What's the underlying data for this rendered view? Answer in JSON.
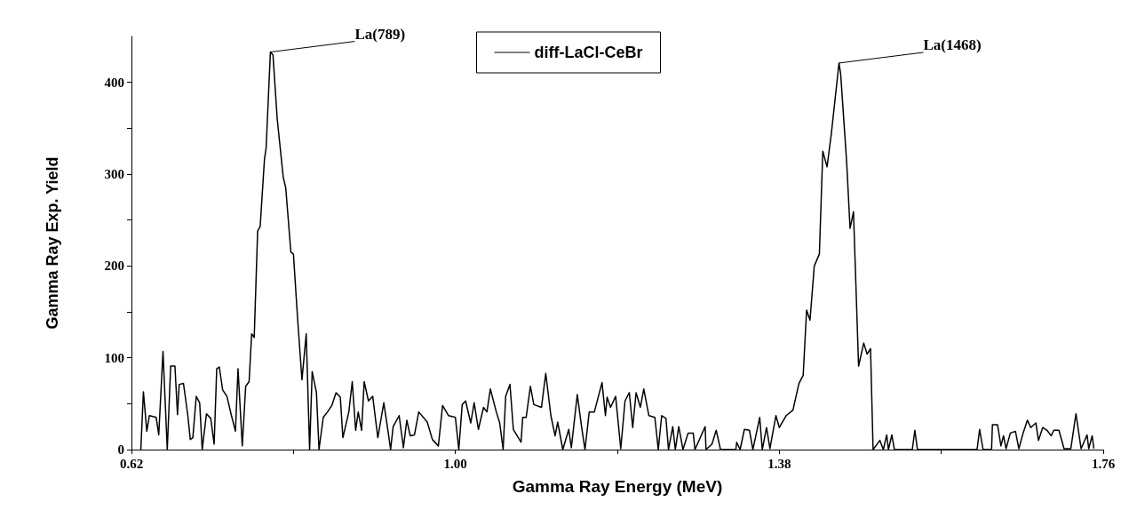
{
  "chart_data": {
    "type": "line",
    "xlabel": "Gamma Ray Energy (MeV)",
    "ylabel": "Gamma Ray Exp. Yield",
    "xlim": [
      0.62,
      1.76
    ],
    "ylim": [
      0,
      450
    ],
    "xticks": [
      0.62,
      {
        "value": 0.81,
        "label": null
      },
      {
        "value": 1,
        "label": "1.00"
      },
      {
        "value": 1.19,
        "label": null
      },
      1.38,
      {
        "value": 1.57,
        "label": null
      },
      1.76
    ],
    "yticks": [
      0,
      {
        "value": 50,
        "label": null
      },
      100,
      {
        "value": 150,
        "label": null
      },
      200,
      {
        "value": 250,
        "label": null
      },
      300,
      {
        "value": 350,
        "label": null
      },
      400
    ],
    "grid": false,
    "legend": "top",
    "marker": "none",
    "line_style": "solid",
    "annotations": [
      {
        "text": "La(789)",
        "x": 0.783,
        "y": 433
      },
      {
        "text": "La(1468)",
        "x": 1.45,
        "y": 421
      }
    ],
    "series": [
      {
        "name": "diff-LaCl-CeBr",
        "color": "#000000",
        "x": [
          0.631,
          0.634,
          0.638,
          0.641,
          0.649,
          0.652,
          0.657,
          0.662,
          0.666,
          0.671,
          0.674,
          0.676,
          0.681,
          0.686,
          0.689,
          0.692,
          0.696,
          0.7,
          0.703,
          0.708,
          0.713,
          0.717,
          0.72,
          0.723,
          0.727,
          0.732,
          0.737,
          0.742,
          0.745,
          0.75,
          0.754,
          0.758,
          0.761,
          0.764,
          0.768,
          0.771,
          0.776,
          0.778,
          0.783,
          0.786,
          0.791,
          0.798,
          0.801,
          0.807,
          0.81,
          0.815,
          0.82,
          0.825,
          0.829,
          0.832,
          0.837,
          0.84,
          0.845,
          0.85,
          0.855,
          0.86,
          0.865,
          0.868,
          0.875,
          0.879,
          0.883,
          0.886,
          0.89,
          0.893,
          0.898,
          0.903,
          0.909,
          0.916,
          0.921,
          0.924,
          0.927,
          0.934,
          0.939,
          0.943,
          0.947,
          0.952,
          0.957,
          0.967,
          0.973,
          0.98,
          0.985,
          0.992,
          1.0,
          1.004,
          1.008,
          1.012,
          1.018,
          1.022,
          1.027,
          1.033,
          1.037,
          1.041,
          1.048,
          1.052,
          1.056,
          1.059,
          1.064,
          1.068,
          1.077,
          1.079,
          1.083,
          1.088,
          1.092,
          1.101,
          1.106,
          1.112,
          1.117,
          1.12,
          1.126,
          1.133,
          1.136,
          1.143,
          1.148,
          1.152,
          1.157,
          1.163,
          1.172,
          1.176,
          1.178,
          1.182,
          1.188,
          1.194,
          1.199,
          1.204,
          1.208,
          1.212,
          1.217,
          1.221,
          1.227,
          1.234,
          1.238,
          1.242,
          1.247,
          1.25,
          1.255,
          1.258,
          1.262,
          1.267,
          1.273,
          1.279,
          1.281,
          1.293,
          1.294,
          1.301,
          1.306,
          1.311,
          1.329,
          1.33,
          1.334,
          1.339,
          1.345,
          1.349,
          1.357,
          1.36,
          1.365,
          1.369,
          1.376,
          1.38,
          1.388,
          1.396,
          1.403,
          1.408,
          1.412,
          1.416,
          1.421,
          1.427,
          1.431,
          1.436,
          1.441,
          1.45,
          1.452,
          1.459,
          1.463,
          1.467,
          1.473,
          1.479,
          1.483,
          1.487,
          1.49,
          1.498,
          1.502,
          1.506,
          1.508,
          1.512,
          1.515,
          1.536,
          1.539,
          1.542,
          1.612,
          1.615,
          1.619,
          1.629,
          1.63,
          1.636,
          1.64,
          1.643,
          1.646,
          1.651,
          1.657,
          1.661,
          1.666,
          1.671,
          1.675,
          1.681,
          1.684,
          1.689,
          1.694,
          1.699,
          1.702,
          1.708,
          1.714,
          1.722,
          1.728,
          1.734,
          1.741,
          1.743,
          1.747,
          1.749
        ],
        "values": [
          0,
          63,
          20,
          37,
          35,
          16,
          107,
          0,
          91,
          91,
          38,
          71,
          72,
          38,
          11,
          13,
          58,
          51,
          0,
          39,
          34,
          6,
          88,
          90,
          65,
          58,
          38,
          20,
          88,
          4,
          69,
          74,
          126,
          122,
          238,
          243,
          316,
          329,
          433,
          430,
          360,
          297,
          285,
          215,
          213,
          141,
          76,
          126,
          0,
          85,
          62,
          0,
          35,
          41,
          48,
          62,
          57,
          13,
          41,
          74,
          21,
          41,
          21,
          74,
          53,
          58,
          13,
          51,
          20,
          0,
          25,
          37,
          2,
          32,
          15,
          16,
          41,
          30,
          11,
          4,
          48,
          37,
          35,
          0,
          49,
          53,
          29,
          51,
          22,
          46,
          41,
          66,
          41,
          29,
          0,
          58,
          71,
          22,
          8,
          35,
          35,
          69,
          49,
          46,
          83,
          37,
          15,
          30,
          0,
          22,
          2,
          60,
          25,
          0,
          41,
          41,
          73,
          37,
          57,
          46,
          58,
          1,
          53,
          62,
          24,
          62,
          46,
          66,
          37,
          35,
          0,
          37,
          34,
          0,
          25,
          0,
          25,
          0,
          18,
          18,
          0,
          25,
          0,
          6,
          21,
          0,
          0,
          8,
          0,
          22,
          21,
          0,
          35,
          0,
          24,
          1,
          37,
          24,
          37,
          43,
          72,
          81,
          152,
          141,
          200,
          213,
          325,
          308,
          344,
          421,
          409,
          313,
          241,
          259,
          91,
          116,
          104,
          110,
          0,
          10,
          0,
          16,
          0,
          16,
          0,
          0,
          21,
          0,
          0,
          22,
          0,
          0,
          27,
          27,
          4,
          15,
          1,
          18,
          20,
          1,
          18,
          32,
          24,
          29,
          10,
          24,
          21,
          15,
          21,
          21,
          1,
          1,
          39,
          1,
          16,
          1,
          15,
          1
        ]
      }
    ]
  }
}
